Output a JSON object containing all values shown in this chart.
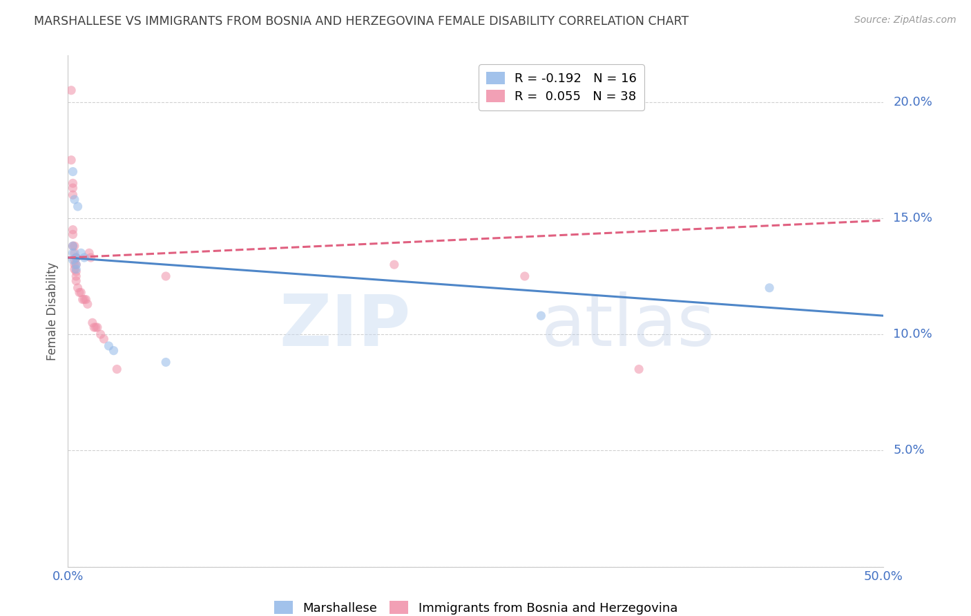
{
  "title": "MARSHALLESE VS IMMIGRANTS FROM BOSNIA AND HERZEGOVINA FEMALE DISABILITY CORRELATION CHART",
  "source": "Source: ZipAtlas.com",
  "ylabel": "Female Disability",
  "xlim": [
    0.0,
    0.5
  ],
  "ylim": [
    0.0,
    0.22
  ],
  "xticks": [
    0.0,
    0.1,
    0.2,
    0.3,
    0.4,
    0.5
  ],
  "xticklabels": [
    "0.0%",
    "",
    "",
    "",
    "",
    "50.0%"
  ],
  "yticks": [
    0.0,
    0.05,
    0.1,
    0.15,
    0.2
  ],
  "yticklabels_right": [
    "",
    "5.0%",
    "10.0%",
    "15.0%",
    "20.0%"
  ],
  "legend_label_1": "R = -0.192   N = 16",
  "legend_label_2": "R =  0.055   N = 38",
  "marshallese_color": "#92b8e8",
  "bosnia_color": "#f090a8",
  "marshallese_line_color": "#4e86c8",
  "bosnia_line_color": "#e06080",
  "marker_alpha": 0.55,
  "marker_size": 90,
  "bg_color": "#ffffff",
  "grid_color": "#c8c8c8",
  "title_color": "#404040",
  "axis_label_color": "#4472c4",
  "marshallese_points": [
    [
      0.003,
      0.17
    ],
    [
      0.003,
      0.138
    ],
    [
      0.003,
      0.135
    ],
    [
      0.003,
      0.132
    ],
    [
      0.004,
      0.158
    ],
    [
      0.005,
      0.133
    ],
    [
      0.005,
      0.13
    ],
    [
      0.005,
      0.128
    ],
    [
      0.006,
      0.155
    ],
    [
      0.008,
      0.135
    ],
    [
      0.01,
      0.133
    ],
    [
      0.025,
      0.095
    ],
    [
      0.028,
      0.093
    ],
    [
      0.06,
      0.088
    ],
    [
      0.29,
      0.108
    ],
    [
      0.43,
      0.12
    ]
  ],
  "bosnia_points": [
    [
      0.002,
      0.205
    ],
    [
      0.002,
      0.175
    ],
    [
      0.003,
      0.165
    ],
    [
      0.003,
      0.163
    ],
    [
      0.003,
      0.16
    ],
    [
      0.003,
      0.145
    ],
    [
      0.003,
      0.143
    ],
    [
      0.003,
      0.138
    ],
    [
      0.004,
      0.138
    ],
    [
      0.004,
      0.135
    ],
    [
      0.004,
      0.132
    ],
    [
      0.004,
      0.13
    ],
    [
      0.004,
      0.128
    ],
    [
      0.005,
      0.133
    ],
    [
      0.005,
      0.13
    ],
    [
      0.005,
      0.127
    ],
    [
      0.005,
      0.125
    ],
    [
      0.005,
      0.123
    ],
    [
      0.006,
      0.12
    ],
    [
      0.007,
      0.118
    ],
    [
      0.008,
      0.118
    ],
    [
      0.009,
      0.115
    ],
    [
      0.01,
      0.115
    ],
    [
      0.011,
      0.115
    ],
    [
      0.012,
      0.113
    ],
    [
      0.013,
      0.135
    ],
    [
      0.014,
      0.133
    ],
    [
      0.015,
      0.105
    ],
    [
      0.016,
      0.103
    ],
    [
      0.017,
      0.103
    ],
    [
      0.018,
      0.103
    ],
    [
      0.02,
      0.1
    ],
    [
      0.022,
      0.098
    ],
    [
      0.03,
      0.085
    ],
    [
      0.06,
      0.125
    ],
    [
      0.2,
      0.13
    ],
    [
      0.28,
      0.125
    ],
    [
      0.35,
      0.085
    ]
  ]
}
